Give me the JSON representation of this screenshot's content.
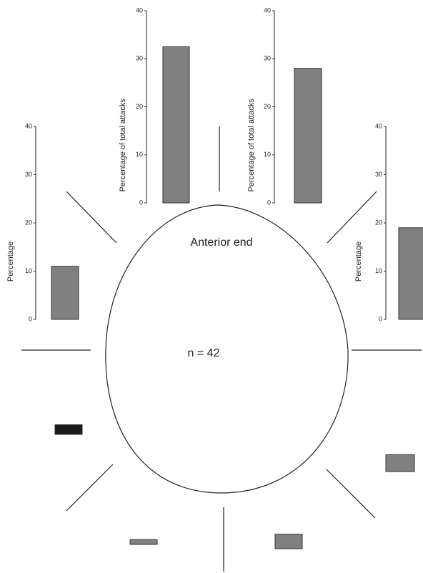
{
  "annotations": {
    "anterior": "Anterior end",
    "n": "n = 42"
  },
  "chart_data": [
    {
      "type": "bar",
      "ylabel": "Percentage of total attacks",
      "values": [
        32.5
      ],
      "color": "#808080",
      "ylim": [
        0,
        40
      ],
      "yticks": [
        0,
        10,
        20,
        30,
        40
      ]
    },
    {
      "type": "bar",
      "ylabel": "Percentage of total attacks",
      "values": [
        28
      ],
      "color": "#808080",
      "ylim": [
        0,
        40
      ],
      "yticks": [
        0,
        10,
        20,
        30,
        40
      ]
    },
    {
      "type": "bar",
      "ylabel": "Percentage",
      "values": [
        11
      ],
      "color": "#808080",
      "ylim": [
        0,
        40
      ],
      "yticks": [
        0,
        10,
        20,
        30,
        40
      ]
    },
    {
      "type": "bar",
      "ylabel": "Percentage",
      "values": [
        19
      ],
      "color": "#808080",
      "ylim": [
        0,
        40
      ],
      "yticks": [
        0,
        10,
        20,
        30,
        40
      ]
    },
    {
      "type": "bar",
      "values": [
        2
      ],
      "color": "#1a1a1a",
      "ylim": [
        0,
        40
      ]
    },
    {
      "type": "bar",
      "values": [
        3.5
      ],
      "color": "#808080",
      "ylim": [
        0,
        40
      ]
    },
    {
      "type": "bar",
      "values": [
        1
      ],
      "color": "#808080",
      "ylim": [
        0,
        40
      ]
    },
    {
      "type": "bar",
      "values": [
        3
      ],
      "color": "#808080",
      "ylim": [
        0,
        40
      ]
    }
  ]
}
